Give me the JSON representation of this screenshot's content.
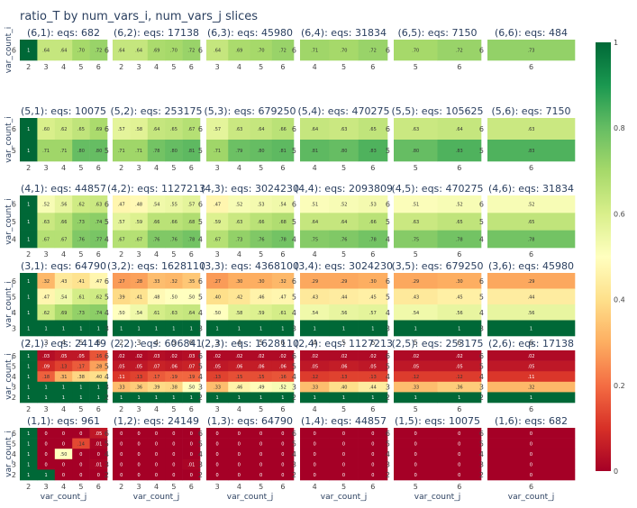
{
  "chart_data": {
    "type": "heatmap",
    "title": "ratio_T by num_vars_i, num_vars_j slices",
    "xlabel": "var_count_j",
    "ylabel": "var_count_i",
    "colorscale": [
      "#a50026",
      "#d73027",
      "#f46d43",
      "#fdae61",
      "#fee08b",
      "#ffffbf",
      "#d9ef8b",
      "#a6d96a",
      "#66bd63",
      "#1a9850",
      "#006837"
    ],
    "colorbar": {
      "min": 0,
      "max": 1,
      "ticks": [
        "0",
        "0.2",
        "0.4",
        "0.6",
        "0.8",
        "1"
      ]
    },
    "panels": [
      {
        "title": "(6,1): eqs: 682",
        "rows": [
          6
        ],
        "cols": [
          2,
          3,
          4,
          5,
          6
        ],
        "z": [
          [
            1,
            0.64,
            0.64,
            0.7,
            0.72
          ]
        ]
      },
      {
        "title": "(6,2): eqs: 17138",
        "rows": [
          6
        ],
        "cols": [
          2,
          3,
          4,
          5,
          6
        ],
        "z": [
          [
            0.64,
            0.64,
            0.69,
            0.7,
            0.72
          ]
        ]
      },
      {
        "title": "(6,3): eqs: 45980",
        "rows": [
          6
        ],
        "cols": [
          3,
          4,
          5,
          6
        ],
        "z": [
          [
            0.64,
            0.69,
            0.7,
            0.72
          ]
        ]
      },
      {
        "title": "(6,4): eqs: 31834",
        "rows": [
          6
        ],
        "cols": [
          4,
          5,
          6
        ],
        "z": [
          [
            0.71,
            0.7,
            0.72
          ]
        ]
      },
      {
        "title": "(6,5): eqs: 7150",
        "rows": [
          6
        ],
        "cols": [
          5,
          6
        ],
        "z": [
          [
            0.7,
            0.72
          ]
        ]
      },
      {
        "title": "(6,6): eqs: 484",
        "rows": [
          6
        ],
        "cols": [
          6
        ],
        "z": [
          [
            0.73
          ]
        ]
      },
      {
        "title": "(5,1): eqs: 10075",
        "rows": [
          6,
          5
        ],
        "cols": [
          2,
          3,
          4,
          5,
          6
        ],
        "z": [
          [
            1,
            0.6,
            0.62,
            0.65,
            0.69
          ],
          [
            1,
            0.71,
            0.71,
            0.8,
            0.8
          ]
        ]
      },
      {
        "title": "(5,2): eqs: 253175",
        "rows": [
          6,
          5
        ],
        "cols": [
          2,
          3,
          4,
          5,
          6
        ],
        "z": [
          [
            0.57,
            0.58,
            0.64,
            0.65,
            0.67
          ],
          [
            0.71,
            0.71,
            0.78,
            0.8,
            0.81
          ]
        ]
      },
      {
        "title": "(5,3): eqs: 679250",
        "rows": [
          6,
          5
        ],
        "cols": [
          3,
          4,
          5,
          6
        ],
        "z": [
          [
            0.57,
            0.63,
            0.64,
            0.66
          ],
          [
            0.71,
            0.79,
            0.8,
            0.81
          ]
        ]
      },
      {
        "title": "(5,4): eqs: 470275",
        "rows": [
          6,
          5
        ],
        "cols": [
          4,
          5,
          6
        ],
        "z": [
          [
            0.64,
            0.63,
            0.65
          ],
          [
            0.81,
            0.8,
            0.83
          ]
        ]
      },
      {
        "title": "(5,5): eqs: 105625",
        "rows": [
          6,
          5
        ],
        "cols": [
          5,
          6
        ],
        "z": [
          [
            0.63,
            0.64
          ],
          [
            0.8,
            0.83
          ]
        ]
      },
      {
        "title": "(5,6): eqs: 7150",
        "rows": [
          6,
          5
        ],
        "cols": [
          6
        ],
        "z": [
          [
            0.63
          ],
          [
            0.83
          ]
        ]
      },
      {
        "title": "(4,1): eqs: 44857",
        "rows": [
          6,
          5,
          4
        ],
        "cols": [
          2,
          3,
          4,
          5,
          6
        ],
        "z": [
          [
            1,
            0.52,
            0.56,
            0.62,
            0.63
          ],
          [
            1,
            0.63,
            0.66,
            0.73,
            0.74
          ],
          [
            1,
            0.67,
            0.67,
            0.76,
            0.77
          ]
        ]
      },
      {
        "title": "(4,2): eqs: 1127213",
        "rows": [
          6,
          5,
          4
        ],
        "cols": [
          2,
          3,
          4,
          5,
          6
        ],
        "z": [
          [
            0.47,
            0.48,
            0.54,
            0.55,
            0.57
          ],
          [
            0.57,
            0.59,
            0.66,
            0.66,
            0.68
          ],
          [
            0.67,
            0.67,
            0.76,
            0.76,
            0.78
          ]
        ]
      },
      {
        "title": "(4,3): eqs: 3024230",
        "rows": [
          6,
          5,
          4
        ],
        "cols": [
          3,
          4,
          5,
          6
        ],
        "z": [
          [
            0.47,
            0.52,
            0.53,
            0.54
          ],
          [
            0.59,
            0.63,
            0.66,
            0.68
          ],
          [
            0.67,
            0.73,
            0.76,
            0.78
          ]
        ]
      },
      {
        "title": "(4,4): eqs: 2093809",
        "rows": [
          6,
          5,
          4
        ],
        "cols": [
          4,
          5,
          6
        ],
        "z": [
          [
            0.51,
            0.52,
            0.53
          ],
          [
            0.64,
            0.64,
            0.66
          ],
          [
            0.75,
            0.76,
            0.78
          ]
        ]
      },
      {
        "title": "(4,5): eqs: 470275",
        "rows": [
          6,
          5,
          4
        ],
        "cols": [
          5,
          6
        ],
        "z": [
          [
            0.51,
            0.52
          ],
          [
            0.63,
            0.65
          ],
          [
            0.75,
            0.78
          ]
        ]
      },
      {
        "title": "(4,6): eqs: 31834",
        "rows": [
          6,
          5,
          4
        ],
        "cols": [
          6
        ],
        "z": [
          [
            0.52
          ],
          [
            0.65
          ],
          [
            0.78
          ]
        ]
      },
      {
        "title": "(3,1): eqs: 64790",
        "rows": [
          6,
          5,
          4,
          3
        ],
        "cols": [
          2,
          3,
          4,
          5,
          6
        ],
        "z": [
          [
            1,
            0.32,
            0.43,
            0.41,
            0.47
          ],
          [
            1,
            0.47,
            0.54,
            0.61,
            0.62
          ],
          [
            1,
            0.62,
            0.69,
            0.73,
            0.74
          ],
          [
            1,
            1,
            1,
            1,
            1
          ]
        ]
      },
      {
        "title": "(3,2): eqs: 1628110",
        "rows": [
          6,
          5,
          4,
          3
        ],
        "cols": [
          2,
          3,
          4,
          5,
          6
        ],
        "z": [
          [
            0.27,
            0.28,
            0.33,
            0.32,
            0.35
          ],
          [
            0.39,
            0.41,
            0.48,
            0.5,
            0.5
          ],
          [
            0.5,
            0.54,
            0.61,
            0.63,
            0.64
          ],
          [
            1,
            1,
            1,
            1,
            1
          ]
        ]
      },
      {
        "title": "(3,3): eqs: 4368100",
        "rows": [
          6,
          5,
          4,
          3
        ],
        "cols": [
          3,
          4,
          5,
          6
        ],
        "z": [
          [
            0.27,
            0.3,
            0.3,
            0.32
          ],
          [
            0.4,
            0.42,
            0.46,
            0.47
          ],
          [
            0.5,
            0.58,
            0.59,
            0.61
          ],
          [
            1,
            1,
            1,
            1
          ]
        ]
      },
      {
        "title": "(3,4): eqs: 3024230",
        "rows": [
          6,
          5,
          4,
          3
        ],
        "cols": [
          4,
          5,
          6
        ],
        "z": [
          [
            0.29,
            0.29,
            0.3
          ],
          [
            0.43,
            0.44,
            0.45
          ],
          [
            0.54,
            0.56,
            0.57
          ],
          [
            1,
            1,
            1
          ]
        ]
      },
      {
        "title": "(3,5): eqs: 679250",
        "rows": [
          6,
          5,
          4,
          3
        ],
        "cols": [
          5,
          6
        ],
        "z": [
          [
            0.29,
            0.3
          ],
          [
            0.43,
            0.45
          ],
          [
            0.54,
            0.56
          ],
          [
            1,
            1
          ]
        ]
      },
      {
        "title": "(3,6): eqs: 45980",
        "rows": [
          6,
          5,
          4,
          3
        ],
        "cols": [
          6
        ],
        "z": [
          [
            0.29
          ],
          [
            0.44
          ],
          [
            0.56
          ],
          [
            1
          ]
        ]
      },
      {
        "title": "(2,1): eqs: 24149",
        "rows": [
          6,
          5,
          4,
          3,
          2
        ],
        "cols": [
          2,
          3,
          4,
          5,
          6
        ],
        "z": [
          [
            1,
            0.03,
            0.05,
            0.05,
            0.16
          ],
          [
            1,
            0.09,
            0.13,
            0.17,
            0.28
          ],
          [
            1,
            0.18,
            0.31,
            0.38,
            0.4
          ],
          [
            1,
            1,
            1,
            1,
            1
          ],
          [
            1,
            1,
            1,
            1,
            1
          ]
        ]
      },
      {
        "title": "(2,2): eqs: 606841",
        "rows": [
          6,
          5,
          4,
          3,
          2
        ],
        "cols": [
          2,
          3,
          4,
          5,
          6
        ],
        "z": [
          [
            0.02,
            0.02,
            0.03,
            0.02,
            0.03
          ],
          [
            0.05,
            0.05,
            0.07,
            0.06,
            0.07
          ],
          [
            0.11,
            0.13,
            0.17,
            0.19,
            0.19
          ],
          [
            0.33,
            0.36,
            0.39,
            0.38,
            0.5
          ],
          [
            1,
            1,
            1,
            1,
            1
          ]
        ]
      },
      {
        "title": "(2,3): eqs: 1628110",
        "rows": [
          6,
          5,
          4,
          3,
          2
        ],
        "cols": [
          3,
          4,
          5,
          6
        ],
        "z": [
          [
            0.02,
            0.02,
            0.02,
            0.02
          ],
          [
            0.05,
            0.06,
            0.06,
            0.06
          ],
          [
            0.13,
            0.15,
            0.15,
            0.16
          ],
          [
            0.33,
            0.46,
            0.49,
            0.52
          ],
          [
            1,
            1,
            1,
            1
          ]
        ]
      },
      {
        "title": "(2,4): eqs: 1127213",
        "rows": [
          6,
          5,
          4,
          3,
          2
        ],
        "cols": [
          4,
          5,
          6
        ],
        "z": [
          [
            0.02,
            0.02,
            0.02
          ],
          [
            0.05,
            0.06,
            0.05
          ],
          [
            0.12,
            0.13,
            0.13
          ],
          [
            0.33,
            0.4,
            0.44
          ],
          [
            1,
            1,
            1
          ]
        ]
      },
      {
        "title": "(2,5): eqs: 253175",
        "rows": [
          6,
          5,
          4,
          3,
          2
        ],
        "cols": [
          5,
          6
        ],
        "z": [
          [
            0.02,
            0.02
          ],
          [
            0.05,
            0.05
          ],
          [
            0.12,
            0.12
          ],
          [
            0.33,
            0.36
          ],
          [
            1,
            1
          ]
        ]
      },
      {
        "title": "(2,6): eqs: 17138",
        "rows": [
          6,
          5,
          4,
          3,
          2
        ],
        "cols": [
          6
        ],
        "z": [
          [
            0.02
          ],
          [
            0.05
          ],
          [
            0.11
          ],
          [
            0.32
          ],
          [
            1
          ]
        ]
      },
      {
        "title": "(1,1): eqs: 961",
        "rows": [
          6,
          5,
          4,
          3,
          2
        ],
        "cols": [
          2,
          3,
          4,
          5,
          6
        ],
        "z": [
          [
            1,
            0,
            0,
            0,
            0.05
          ],
          [
            1,
            0,
            0,
            0.14,
            0.01
          ],
          [
            1,
            0,
            0.5,
            0,
            0
          ],
          [
            1,
            0,
            0,
            0,
            0.01
          ],
          [
            1,
            1,
            0,
            0,
            0
          ]
        ]
      },
      {
        "title": "(1,2): eqs: 24149",
        "rows": [
          6,
          5,
          4,
          3,
          2
        ],
        "cols": [
          2,
          3,
          4,
          5,
          6
        ],
        "z": [
          [
            0,
            0,
            0,
            0,
            0
          ],
          [
            0,
            0,
            0,
            0,
            0
          ],
          [
            0,
            0,
            0,
            0,
            0
          ],
          [
            0,
            0,
            0,
            0,
            0.01
          ],
          [
            0,
            0,
            0,
            0,
            0
          ]
        ]
      },
      {
        "title": "(1,3): eqs: 64790",
        "rows": [
          6,
          5,
          4,
          3,
          2
        ],
        "cols": [
          3,
          4,
          5,
          6
        ],
        "z": [
          [
            0,
            0,
            0,
            0
          ],
          [
            0,
            0,
            0,
            0
          ],
          [
            0,
            0,
            0,
            0
          ],
          [
            0,
            0,
            0,
            0
          ],
          [
            0,
            0,
            0,
            0
          ]
        ]
      },
      {
        "title": "(1,4): eqs: 44857",
        "rows": [
          6,
          5,
          4,
          3,
          2
        ],
        "cols": [
          4,
          5,
          6
        ],
        "z": [
          [
            0,
            0,
            0
          ],
          [
            0,
            0,
            0
          ],
          [
            0,
            0,
            0
          ],
          [
            0,
            0,
            0
          ],
          [
            0,
            0,
            0
          ]
        ]
      },
      {
        "title": "(1,5): eqs: 10075",
        "rows": [
          6,
          5,
          4,
          3,
          2
        ],
        "cols": [
          5,
          6
        ],
        "z": [
          [
            0,
            0
          ],
          [
            0,
            0
          ],
          [
            0,
            0
          ],
          [
            0,
            0
          ],
          [
            0,
            0
          ]
        ]
      },
      {
        "title": "(1,6): eqs: 682",
        "rows": [
          6,
          5,
          4,
          3,
          2
        ],
        "cols": [
          6
        ],
        "z": [
          [
            0
          ],
          [
            0
          ],
          [
            0
          ],
          [
            0
          ],
          [
            0
          ]
        ]
      }
    ]
  }
}
